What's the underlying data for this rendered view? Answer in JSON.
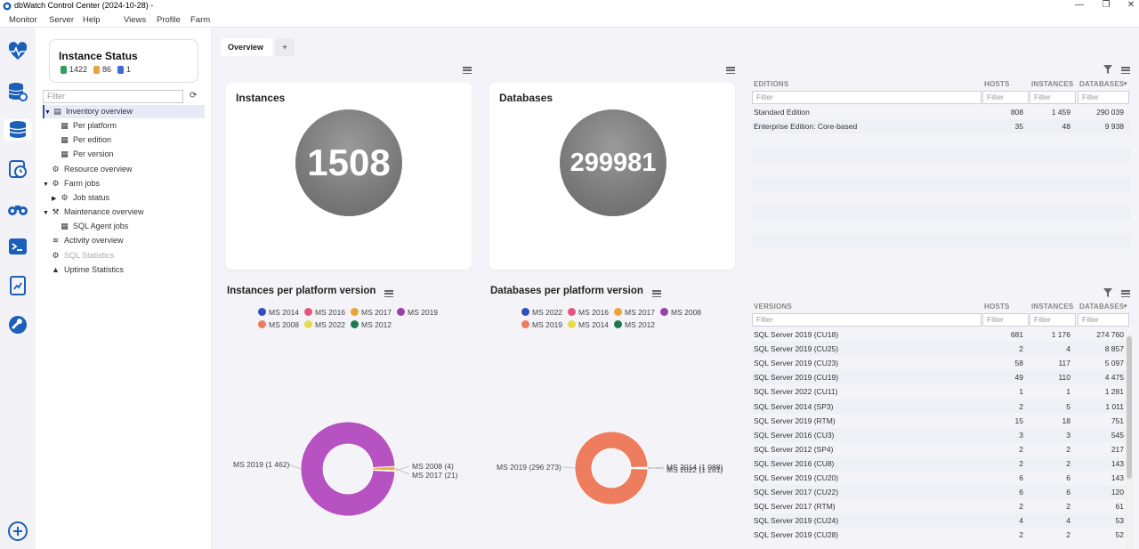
{
  "window": {
    "title": "dbWatch Control Center  (2024-10-28) -",
    "minimize": "—",
    "maximize": "❐",
    "close": "✕"
  },
  "menu": {
    "items": [
      "Monitor",
      "Server",
      "Help",
      "Views",
      "Profile",
      "Farm"
    ]
  },
  "rail_icons": [
    "heartbeat-icon",
    "database-settings-icon",
    "database-stack-icon",
    "database-clock-icon",
    "binoculars-icon",
    "terminal-icon",
    "report-icon",
    "wrench-icon",
    "add-circle-icon"
  ],
  "instance_status": {
    "title": "Instance Status",
    "count1": "1422",
    "count2": "86",
    "count3": "1",
    "colors": [
      "#2e9e5a",
      "#e8a33a",
      "#3d6bd1"
    ]
  },
  "tree": {
    "filter_placeholder": "Filter",
    "items": [
      {
        "label": "Inventory overview",
        "level": 1,
        "expanded": true,
        "selected": true,
        "icon": "doc-icon"
      },
      {
        "label": "Per platform",
        "level": 2,
        "icon": "table-icon"
      },
      {
        "label": "Per edition",
        "level": 2,
        "icon": "table-icon"
      },
      {
        "label": "Per version",
        "level": 2,
        "icon": "table-icon"
      },
      {
        "label": "Resource overview",
        "level": 1,
        "icon": "resource-icon"
      },
      {
        "label": "Farm jobs",
        "level": 1,
        "expanded": true,
        "icon": "jobs-icon"
      },
      {
        "label": "Job status",
        "level": 2,
        "collapsed": true,
        "icon": "job-icon"
      },
      {
        "label": "Maintenance overview",
        "level": 1,
        "expanded": true,
        "icon": "maintenance-icon"
      },
      {
        "label": "SQL Agent jobs",
        "level": 2,
        "icon": "table-icon"
      },
      {
        "label": "Activity overview",
        "level": 1,
        "icon": "activity-icon"
      },
      {
        "label": "SQL Statistics",
        "level": 1,
        "dimmed": true,
        "icon": "stats-icon"
      },
      {
        "label": "Uptime Statistics",
        "level": 1,
        "icon": "uptime-icon"
      }
    ]
  },
  "tabs": {
    "active": "Overview",
    "add": "+"
  },
  "instances_card": {
    "title": "Instances",
    "value": "1508"
  },
  "databases_card": {
    "title": "Databases",
    "value": "299981"
  },
  "editions_grid": {
    "headers": [
      "EDITIONS",
      "HOSTS",
      "INSTANCES",
      "DATABASES"
    ],
    "filter_placeholder": "Filter",
    "rows": [
      [
        "Standard Edition",
        "808",
        "1 459",
        "290 039"
      ],
      [
        "Enterprise Edition: Core-based",
        "35",
        "48",
        "9 938"
      ]
    ]
  },
  "versions_grid": {
    "headers": [
      "VERSIONS",
      "HOSTS",
      "INSTANCES",
      "DATABASES"
    ],
    "filter_placeholder": "Filter",
    "rows": [
      [
        "SQL Server 2019 (CU18)",
        "681",
        "1 176",
        "274 760"
      ],
      [
        "SQL Server 2019 (CU25)",
        "2",
        "4",
        "8 857"
      ],
      [
        "SQL Server 2019 (CU23)",
        "58",
        "117",
        "5 097"
      ],
      [
        "SQL Server 2019 (CU19)",
        "49",
        "110",
        "4 475"
      ],
      [
        "SQL Server 2022 (CU11)",
        "1",
        "1",
        "1 281"
      ],
      [
        "SQL Server 2014 (SP3)",
        "2",
        "5",
        "1 011"
      ],
      [
        "SQL Server 2019 (RTM)",
        "15",
        "18",
        "751"
      ],
      [
        "SQL Server 2016 (CU3)",
        "3",
        "3",
        "545"
      ],
      [
        "SQL Server 2012 (SP4)",
        "2",
        "2",
        "217"
      ],
      [
        "SQL Server 2016 (CU8)",
        "2",
        "2",
        "143"
      ],
      [
        "SQL Server 2019 (CU20)",
        "6",
        "6",
        "143"
      ],
      [
        "SQL Server 2017 (CU22)",
        "6",
        "6",
        "120"
      ],
      [
        "SQL Server 2017 (RTM)",
        "2",
        "2",
        "61"
      ],
      [
        "SQL Server 2019 (CU24)",
        "4",
        "4",
        "53"
      ],
      [
        "SQL Server 2019 (CU28)",
        "2",
        "2",
        "52"
      ]
    ]
  },
  "chart_data": [
    {
      "type": "pie",
      "title": "Instances per platform version",
      "legend": [
        "MS 2014",
        "MS 2016",
        "MS 2017",
        "MS 2019",
        "MS 2008",
        "MS 2022",
        "MS 2012"
      ],
      "colors": [
        "#2f4fc0",
        "#e75480",
        "#e8a33a",
        "#9b3fae",
        "#ee7c5e",
        "#e8dc4a",
        "#1e7a4e"
      ],
      "slices": [
        {
          "label": "MS 2019",
          "value": 1462,
          "color": "#b652c2"
        },
        {
          "label": "MS 2008",
          "value": 4,
          "color": "#ee7c5e"
        },
        {
          "label": "MS 2017",
          "value": 21,
          "color": "#e8b04a"
        }
      ],
      "slice_labels": [
        "MS 2019 (1 462)",
        "MS 2008 (4)",
        "MS 2017 (21)"
      ]
    },
    {
      "type": "pie",
      "title": "Databases per platform version",
      "legend": [
        "MS 2022",
        "MS 2016",
        "MS 2017",
        "MS 2008",
        "MS 2019",
        "MS 2014",
        "MS 2012"
      ],
      "colors": [
        "#2f4fc0",
        "#e75480",
        "#e8a33a",
        "#9b3fae",
        "#ee7c5e",
        "#e8dc4a",
        "#1e7a4e"
      ],
      "slices": [
        {
          "label": "MS 2019",
          "value": 296273,
          "color": "#ee7c5e"
        },
        {
          "label": "MS 2014",
          "value": 1088,
          "color": "#e8dc4a"
        },
        {
          "label": "MS 2022",
          "value": 1281,
          "color": "#2f4fc0"
        }
      ],
      "slice_labels": [
        "MS 2019 (296 273)",
        "MS 2014 (1 088)",
        "MS 2022 (1 281)"
      ]
    }
  ]
}
